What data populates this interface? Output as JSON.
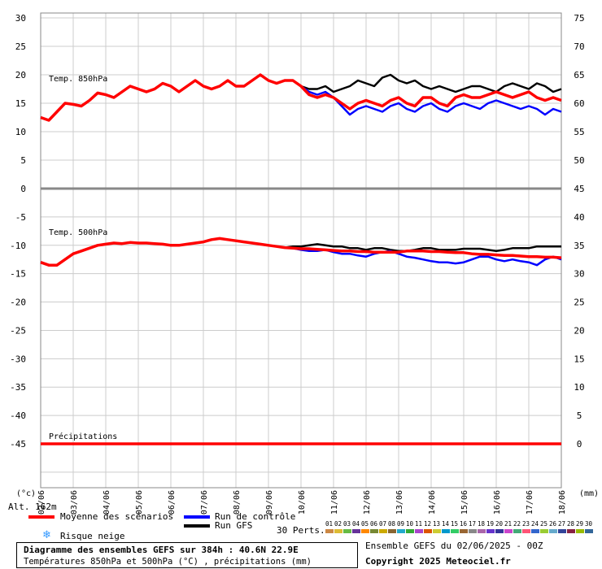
{
  "chart_data": {
    "type": "line",
    "panels": [
      {
        "label": "Temp. 850hPa",
        "left_axis_ticks": [
          "30",
          "25",
          "20",
          "15",
          "10",
          "5",
          "0"
        ],
        "right_axis_ticks": [
          "75",
          "70",
          "65",
          "60",
          "55",
          "50",
          "45"
        ],
        "left_range": [
          0,
          30
        ],
        "right_range": [
          45,
          75
        ]
      },
      {
        "label": "Temp. 500hPa",
        "left_axis_ticks": [
          "-5",
          "-10",
          "-15",
          "-20",
          "-25",
          "-30",
          "-35",
          "-40",
          "-45"
        ],
        "right_axis_ticks": [
          "40",
          "35",
          "30",
          "25",
          "20",
          "15",
          "10",
          "5",
          "0"
        ],
        "left_range": [
          -45,
          0
        ],
        "right_range": [
          0,
          45
        ]
      },
      {
        "label": "Précipitations",
        "unit": "mm"
      }
    ],
    "x_ticks": [
      "02/06",
      "03/06",
      "04/06",
      "05/06",
      "06/06",
      "07/06",
      "08/06",
      "09/06",
      "10/06",
      "11/06",
      "12/06",
      "13/06",
      "14/06",
      "15/06",
      "16/06",
      "17/06",
      "18/06"
    ],
    "x_unit_left": "(°c)",
    "x_unit_right": "(mm)",
    "altitude_label": "Alt. 162m",
    "steps_per_day": 4,
    "series": [
      {
        "name": "Moyenne des scénarios",
        "color": "#ff0000",
        "t850": [
          12.5,
          12,
          13.5,
          15,
          14.8,
          14.5,
          15.5,
          16.8,
          16.5,
          16,
          17,
          18,
          17.5,
          17,
          17.5,
          18.5,
          18,
          17,
          18,
          19,
          18,
          17.5,
          18,
          19,
          18,
          18,
          19,
          20,
          19,
          18.5,
          19,
          19,
          18,
          16.5,
          16,
          16.5,
          16,
          15,
          14,
          15,
          15.5,
          15,
          14.5,
          15.5,
          16,
          15,
          14.5,
          16,
          16,
          15,
          14.5,
          16,
          16.5,
          16,
          16,
          16.5,
          17,
          16.5,
          16,
          16.5,
          17,
          16,
          15.5,
          16,
          15.5
        ],
        "t500": [
          -13,
          -13.5,
          -13.5,
          -12.5,
          -11.5,
          -11,
          -10.5,
          -10,
          -9.8,
          -9.6,
          -9.7,
          -9.5,
          -9.6,
          -9.6,
          -9.7,
          -9.8,
          -10,
          -10,
          -9.8,
          -9.6,
          -9.4,
          -9,
          -8.8,
          -9,
          -9.2,
          -9.4,
          -9.6,
          -9.8,
          -10,
          -10.2,
          -10.4,
          -10.5,
          -10.6,
          -10.6,
          -10.7,
          -10.8,
          -10.9,
          -11,
          -11,
          -11.1,
          -11.1,
          -11.2,
          -11.2,
          -11.2,
          -11.2,
          -11,
          -11,
          -11,
          -11.1,
          -11.1,
          -11.2,
          -11.3,
          -11.3,
          -11.5,
          -11.6,
          -11.6,
          -11.7,
          -11.8,
          -11.8,
          -11.9,
          -12,
          -12,
          -12.1,
          -12.1,
          -12.2
        ],
        "precip": [
          0,
          0,
          0,
          0,
          0,
          0,
          0,
          0,
          0,
          0,
          0,
          0,
          0,
          0,
          0,
          0,
          0,
          0,
          0,
          0,
          0,
          0,
          0,
          0,
          0,
          0,
          0,
          0,
          0,
          0,
          0,
          0,
          0,
          0,
          0,
          0,
          0,
          0,
          0,
          0,
          0,
          0,
          0,
          0,
          0,
          0,
          0,
          0,
          0,
          0,
          0,
          0,
          0,
          0,
          0,
          0,
          0,
          0,
          0,
          0,
          0,
          0,
          0,
          0,
          0
        ]
      },
      {
        "name": "Run de contrôle",
        "color": "#0000ff",
        "t850": [
          12.5,
          12,
          13.5,
          15,
          14.8,
          14.5,
          15.5,
          16.8,
          16.5,
          16,
          17,
          18,
          17.5,
          17,
          17.5,
          18.5,
          18,
          17,
          18,
          19,
          18,
          17.5,
          18,
          19,
          18,
          18,
          19,
          20,
          19,
          18.5,
          19,
          19,
          18,
          17,
          16.5,
          17,
          16,
          14.5,
          13,
          14,
          14.5,
          14,
          13.5,
          14.5,
          15,
          14,
          13.5,
          14.5,
          15,
          14,
          13.5,
          14.5,
          15,
          14.5,
          14,
          15,
          15.5,
          15,
          14.5,
          14,
          14.5,
          14,
          13,
          14,
          13.5
        ],
        "t500": [
          -13,
          -13.5,
          -13.5,
          -12.5,
          -11.5,
          -11,
          -10.5,
          -10,
          -9.8,
          -9.6,
          -9.7,
          -9.5,
          -9.6,
          -9.6,
          -9.7,
          -9.8,
          -10,
          -10,
          -9.8,
          -9.6,
          -9.4,
          -9,
          -8.8,
          -9,
          -9.2,
          -9.4,
          -9.6,
          -9.8,
          -10,
          -10.2,
          -10.4,
          -10.5,
          -10.8,
          -11,
          -11,
          -10.8,
          -11.2,
          -11.5,
          -11.5,
          -11.8,
          -12,
          -11.5,
          -11.2,
          -11,
          -11.5,
          -12,
          -12.2,
          -12.5,
          -12.8,
          -13,
          -13,
          -13.2,
          -13,
          -12.5,
          -12,
          -12,
          -12.5,
          -12.8,
          -12.5,
          -12.8,
          -13,
          -13.5,
          -12.5,
          -12,
          -12.5
        ],
        "precip": [
          0,
          0,
          0,
          0,
          0,
          0,
          0,
          0,
          0,
          0,
          0,
          0,
          0,
          0,
          0,
          0,
          0,
          0,
          0,
          0,
          0,
          0,
          0,
          0,
          0,
          0,
          0,
          0,
          0,
          0,
          0,
          0,
          0,
          0,
          0,
          0,
          0,
          0,
          0,
          0,
          0,
          0,
          0,
          0,
          0,
          0,
          0,
          0,
          0,
          0,
          0,
          0,
          0,
          0,
          0,
          0,
          0,
          0,
          0,
          0,
          0,
          0,
          0,
          0,
          0
        ]
      },
      {
        "name": "Run GFS",
        "color": "#000000",
        "t850": [
          12.5,
          12,
          13.5,
          15,
          14.8,
          14.5,
          15.5,
          16.8,
          16.5,
          16,
          17,
          18,
          17.5,
          17,
          17.5,
          18.5,
          18,
          17,
          18,
          19,
          18,
          17.5,
          18,
          19,
          18,
          18,
          19,
          20,
          19,
          18.5,
          19,
          19,
          18,
          17.5,
          17.5,
          18,
          17,
          17.5,
          18,
          19,
          18.5,
          18,
          19.5,
          20,
          19,
          18.5,
          19,
          18,
          17.5,
          18,
          17.5,
          17,
          17.5,
          18,
          18,
          17.5,
          17,
          18,
          18.5,
          18,
          17.5,
          18.5,
          18,
          17,
          17.5
        ],
        "t500": [
          -13,
          -13.5,
          -13.5,
          -12.5,
          -11.5,
          -11,
          -10.5,
          -10,
          -9.8,
          -9.6,
          -9.7,
          -9.5,
          -9.6,
          -9.6,
          -9.7,
          -9.8,
          -10,
          -10,
          -9.8,
          -9.6,
          -9.4,
          -9,
          -8.8,
          -9,
          -9.2,
          -9.4,
          -9.6,
          -9.8,
          -10,
          -10.2,
          -10.4,
          -10.2,
          -10.2,
          -10,
          -9.8,
          -10,
          -10.2,
          -10.2,
          -10.5,
          -10.5,
          -10.8,
          -10.5,
          -10.5,
          -10.8,
          -11,
          -11,
          -10.8,
          -10.5,
          -10.5,
          -10.8,
          -10.8,
          -10.8,
          -10.6,
          -10.6,
          -10.6,
          -10.8,
          -11,
          -10.8,
          -10.5,
          -10.5,
          -10.5,
          -10.2,
          -10.2,
          -10.2,
          -10.2
        ],
        "precip": [
          0,
          0,
          0,
          0,
          0,
          0,
          0,
          0,
          0,
          0,
          0,
          0,
          0,
          0,
          0,
          0,
          0,
          0,
          0,
          0,
          0,
          0,
          0,
          0,
          0,
          0,
          0,
          0,
          0,
          0,
          0,
          0,
          0,
          0,
          0,
          0,
          0,
          0,
          0,
          0,
          0,
          0,
          0,
          0,
          0,
          0,
          0,
          0,
          0,
          0,
          0,
          0,
          0,
          0,
          0,
          0,
          0,
          0,
          0,
          0,
          0,
          0,
          0,
          0,
          0
        ]
      }
    ],
    "perturbation_codes": [
      "01",
      "02",
      "03",
      "04",
      "05",
      "06",
      "07",
      "08",
      "09",
      "10",
      "11",
      "12",
      "13",
      "14",
      "15",
      "16",
      "17",
      "18",
      "19",
      "20",
      "21",
      "22",
      "23",
      "24",
      "25",
      "26",
      "27",
      "28",
      "29",
      "30"
    ],
    "perturbation_colors": [
      "#cc8844",
      "#ddbb33",
      "#66bb44",
      "#663399",
      "#ff8800",
      "#778833",
      "#ccaa00",
      "#886633",
      "#22aacc",
      "#33aa33",
      "#aa44cc",
      "#dd5500",
      "#cccc33",
      "#0099cc",
      "#33cc66",
      "#996633",
      "#888888",
      "#aa66aa",
      "#6633cc",
      "#333399",
      "#cc44cc",
      "#44aa77",
      "#ff5577",
      "#3366cc",
      "#99cc33",
      "#66aacc",
      "#334499",
      "#882244",
      "#99bb00",
      "#336699"
    ]
  },
  "legend": {
    "mean_label": "Moyenne des scénarios",
    "control_label": "Run de contrôle",
    "gfs_label": "Run GFS",
    "snow_label": "Risque neige",
    "perts_label": "30 Perts.",
    "snow_icon": "snowflake-icon"
  },
  "footer": {
    "title": "Diagramme des ensembles GEFS sur 384h : 40.6N 22.9E",
    "subtitle": "Températures 850hPa et 500hPa (°C) , précipitations (mm)",
    "run_info": "Ensemble GEFS du 02/06/2025 - 00Z",
    "copyright": "Copyright 2025 Meteociel.fr"
  },
  "colors": {
    "mean": "#ff0000",
    "control": "#0000ff",
    "gfs": "#000000",
    "grid": "#cccccc",
    "frame": "#888888"
  }
}
